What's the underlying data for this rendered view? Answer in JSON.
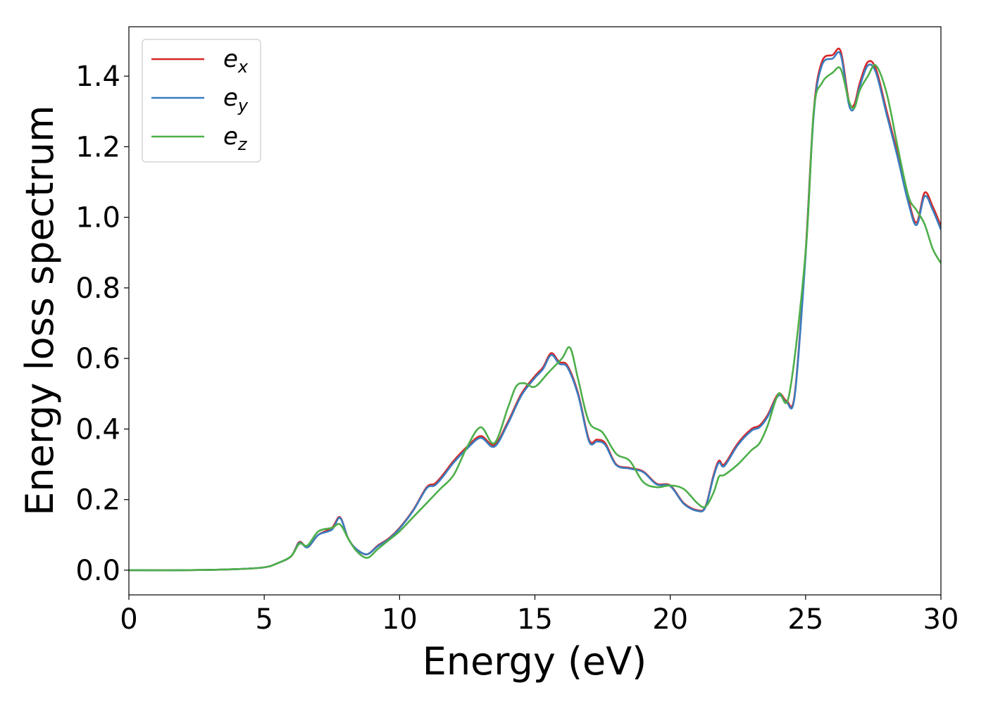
{
  "chart_data": {
    "type": "line",
    "xlabel": "Energy (eV)",
    "ylabel": "Energy loss spectrum",
    "xlim": [
      0,
      30
    ],
    "ylim": [
      -0.07,
      1.54
    ],
    "xticks": [
      0,
      5,
      10,
      15,
      20,
      25,
      30
    ],
    "xtick_labels": [
      "0",
      "5",
      "10",
      "15",
      "20",
      "25",
      "30"
    ],
    "yticks": [
      0.0,
      0.2,
      0.4,
      0.6,
      0.8,
      1.0,
      1.2,
      1.4
    ],
    "ytick_labels": [
      "0.0",
      "0.2",
      "0.4",
      "0.6",
      "0.8",
      "1.0",
      "1.2",
      "1.4"
    ],
    "grid": false,
    "legend_position": "top-left",
    "series": [
      {
        "name": "e_x",
        "legend_base": "e",
        "legend_sub": "x",
        "color": "#d62728",
        "x": [
          0,
          2,
          4,
          5,
          5.5,
          6,
          6.3,
          6.6,
          7,
          7.5,
          7.8,
          8.1,
          8.4,
          8.8,
          9.2,
          9.6,
          10,
          10.5,
          11,
          11.3,
          11.6,
          12,
          12.5,
          13,
          13.5,
          14,
          14.5,
          15,
          15.3,
          15.6,
          15.9,
          16.2,
          16.6,
          17,
          17.3,
          17.6,
          18,
          18.5,
          19,
          19.5,
          20,
          20.5,
          21,
          21.3,
          21.6,
          21.8,
          22,
          22.5,
          23,
          23.3,
          23.6,
          24,
          24.3,
          24.6,
          25,
          25.3,
          25.6,
          26,
          26.3,
          26.6,
          26.8,
          27,
          27.3,
          27.6,
          28,
          28.4,
          28.8,
          29.1,
          29.4,
          29.7,
          30
        ],
        "y": [
          0.0,
          0.0,
          0.003,
          0.008,
          0.02,
          0.04,
          0.08,
          0.065,
          0.1,
          0.12,
          0.15,
          0.09,
          0.06,
          0.045,
          0.07,
          0.09,
          0.12,
          0.17,
          0.235,
          0.245,
          0.27,
          0.31,
          0.35,
          0.38,
          0.355,
          0.42,
          0.5,
          0.55,
          0.575,
          0.615,
          0.59,
          0.58,
          0.5,
          0.37,
          0.37,
          0.36,
          0.3,
          0.29,
          0.28,
          0.245,
          0.24,
          0.19,
          0.17,
          0.18,
          0.27,
          0.31,
          0.3,
          0.36,
          0.4,
          0.41,
          0.44,
          0.5,
          0.48,
          0.5,
          0.9,
          1.3,
          1.44,
          1.46,
          1.47,
          1.33,
          1.32,
          1.38,
          1.44,
          1.42,
          1.3,
          1.18,
          1.05,
          0.985,
          1.07,
          1.03,
          0.975
        ]
      },
      {
        "name": "e_y",
        "legend_base": "e",
        "legend_sub": "y",
        "color": "#3b7dbf",
        "x": [
          0,
          2,
          4,
          5,
          5.5,
          6,
          6.3,
          6.6,
          7,
          7.5,
          7.8,
          8.1,
          8.4,
          8.8,
          9.2,
          9.6,
          10,
          10.5,
          11,
          11.3,
          11.6,
          12,
          12.5,
          13,
          13.5,
          14,
          14.5,
          15,
          15.3,
          15.6,
          15.9,
          16.2,
          16.6,
          17,
          17.3,
          17.6,
          18,
          18.5,
          19,
          19.5,
          20,
          20.5,
          21,
          21.3,
          21.6,
          21.8,
          22,
          22.5,
          23,
          23.3,
          23.6,
          24,
          24.3,
          24.6,
          25,
          25.3,
          25.6,
          26,
          26.3,
          26.6,
          26.8,
          27,
          27.3,
          27.6,
          28,
          28.4,
          28.8,
          29.1,
          29.4,
          29.7,
          30
        ],
        "y": [
          0.0,
          0.0,
          0.003,
          0.008,
          0.02,
          0.04,
          0.078,
          0.065,
          0.1,
          0.115,
          0.148,
          0.09,
          0.06,
          0.045,
          0.068,
          0.088,
          0.118,
          0.168,
          0.232,
          0.24,
          0.265,
          0.305,
          0.345,
          0.375,
          0.35,
          0.415,
          0.495,
          0.545,
          0.57,
          0.61,
          0.585,
          0.575,
          0.495,
          0.365,
          0.365,
          0.355,
          0.298,
          0.288,
          0.278,
          0.243,
          0.238,
          0.188,
          0.168,
          0.178,
          0.265,
          0.305,
          0.295,
          0.355,
          0.395,
          0.405,
          0.435,
          0.495,
          0.475,
          0.495,
          0.89,
          1.29,
          1.43,
          1.45,
          1.46,
          1.32,
          1.31,
          1.37,
          1.43,
          1.41,
          1.29,
          1.17,
          1.04,
          0.978,
          1.06,
          1.02,
          0.965
        ]
      },
      {
        "name": "e_z",
        "legend_base": "e",
        "legend_sub": "z",
        "color": "#4daf4a",
        "x": [
          0,
          2,
          4,
          5,
          5.5,
          6,
          6.3,
          6.6,
          7,
          7.5,
          7.8,
          8.1,
          8.4,
          8.8,
          9.2,
          9.6,
          10,
          10.5,
          11,
          11.5,
          12,
          12.5,
          13,
          13.5,
          14,
          14.3,
          14.6,
          15,
          15.5,
          16,
          16.3,
          16.6,
          17,
          17.5,
          18,
          18.5,
          19,
          19.5,
          20,
          20.5,
          21,
          21.3,
          21.6,
          21.8,
          22,
          22.5,
          23,
          23.3,
          23.6,
          24,
          24.4,
          25,
          25.3,
          25.6,
          26,
          26.3,
          26.6,
          26.8,
          27,
          27.3,
          27.6,
          28,
          28.4,
          28.8,
          29.1,
          29.4,
          29.7,
          30
        ],
        "y": [
          0.0,
          0.0,
          0.003,
          0.008,
          0.02,
          0.04,
          0.075,
          0.07,
          0.11,
          0.12,
          0.13,
          0.09,
          0.055,
          0.035,
          0.06,
          0.085,
          0.11,
          0.15,
          0.19,
          0.23,
          0.27,
          0.35,
          0.405,
          0.36,
          0.46,
          0.52,
          0.53,
          0.52,
          0.56,
          0.6,
          0.63,
          0.54,
          0.42,
          0.39,
          0.33,
          0.31,
          0.25,
          0.235,
          0.24,
          0.23,
          0.19,
          0.18,
          0.22,
          0.265,
          0.27,
          0.3,
          0.34,
          0.36,
          0.41,
          0.5,
          0.5,
          0.9,
          1.3,
          1.38,
          1.41,
          1.42,
          1.33,
          1.31,
          1.36,
          1.4,
          1.43,
          1.35,
          1.2,
          1.06,
          1.02,
          0.98,
          0.91,
          0.87
        ]
      }
    ]
  }
}
